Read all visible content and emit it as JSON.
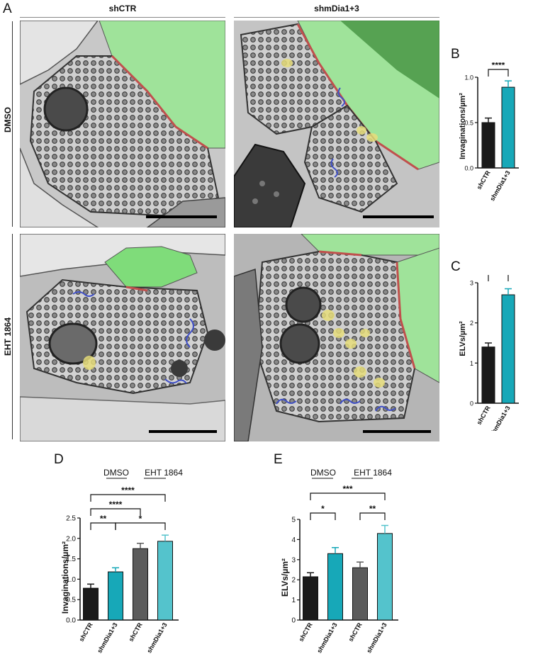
{
  "figure": {
    "panel_letters": {
      "A": "A",
      "B": "B",
      "C": "C",
      "D": "D",
      "E": "E"
    },
    "column_headers": [
      "shCTR",
      "shmDia1+3"
    ],
    "row_labels": [
      "DMSO",
      "EHT 1864"
    ],
    "colors": {
      "black_bar": "#1a1a1a",
      "teal_bar": "#17a8b8",
      "gray_bar": "#5c5c5c",
      "light_teal_bar": "#54c3cc",
      "membrane_red": "#c0504d",
      "invagination_blue": "#4050c8",
      "elv_yellow": "#e6dd7a",
      "postsynaptic_green": "#7fdc7a"
    }
  },
  "chart_data": [
    {
      "id": "B",
      "type": "bar",
      "categories": [
        "shCTR",
        "shmDia1+3"
      ],
      "values": [
        0.5,
        0.89
      ],
      "errors": [
        0.05,
        0.07
      ],
      "ylabel": "Invaginations/µm²",
      "ylim": [
        0,
        1.0
      ],
      "yticks": [
        "0.0",
        "0.5",
        "1.0"
      ],
      "significance": [
        {
          "pair": [
            0,
            1
          ],
          "label": "****"
        }
      ]
    },
    {
      "id": "C",
      "type": "bar",
      "categories": [
        "shCTR",
        "shmDia1+3"
      ],
      "values": [
        1.4,
        2.7
      ],
      "errors": [
        0.1,
        0.15
      ],
      "ylabel": "ELVs/µm²",
      "ylim": [
        0,
        3
      ],
      "yticks": [
        "0",
        "1",
        "2",
        "3"
      ],
      "significance": [
        {
          "pair": [
            0,
            1
          ],
          "label": "****"
        }
      ]
    },
    {
      "id": "D",
      "type": "bar",
      "categories": [
        "shCTR",
        "shmDia1+3",
        "shCTR",
        "shmDia1+3"
      ],
      "values": [
        0.78,
        1.18,
        1.75,
        1.93
      ],
      "errors": [
        0.1,
        0.1,
        0.13,
        0.15
      ],
      "group_labels": [
        "DMSO",
        "EHT 1864"
      ],
      "ylabel": "Invaginations/µm²",
      "ylim": [
        0,
        2.5
      ],
      "yticks": [
        "0.0",
        "0.5",
        "1.0",
        "1.5",
        "2.0",
        "2.5"
      ],
      "significance": [
        {
          "pair": [
            0,
            1
          ],
          "label": "**"
        },
        {
          "pair": [
            1,
            3
          ],
          "label": "*"
        },
        {
          "pair": [
            0,
            2
          ],
          "label": "****"
        },
        {
          "pair": [
            0,
            3
          ],
          "label": "****"
        }
      ]
    },
    {
      "id": "E",
      "type": "bar",
      "categories": [
        "shCTR",
        "shmDia1+3",
        "shCTR",
        "shmDia1+3"
      ],
      "values": [
        2.15,
        3.3,
        2.6,
        4.3
      ],
      "errors": [
        0.2,
        0.3,
        0.28,
        0.4
      ],
      "group_labels": [
        "DMSO",
        "EHT 1864"
      ],
      "ylabel": "ELVs/µm²",
      "ylim": [
        0,
        5
      ],
      "yticks": [
        "0",
        "1",
        "2",
        "3",
        "4",
        "5"
      ],
      "significance": [
        {
          "pair": [
            0,
            1
          ],
          "label": "*"
        },
        {
          "pair": [
            2,
            3
          ],
          "label": "**"
        },
        {
          "pair": [
            0,
            3
          ],
          "label": "***"
        }
      ]
    }
  ]
}
